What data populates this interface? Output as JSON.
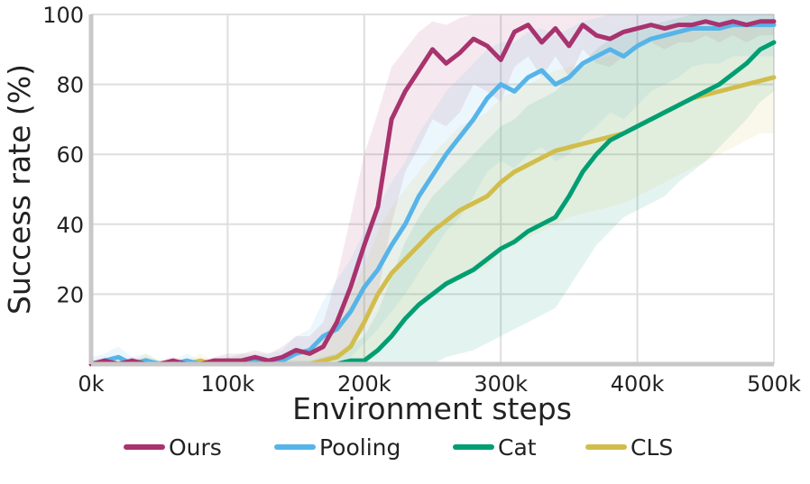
{
  "chart_data": {
    "type": "line",
    "title": "",
    "xlabel": "Environment steps",
    "ylabel": "Success rate (%)",
    "xlim": [
      0,
      500000
    ],
    "ylim": [
      0,
      100
    ],
    "x_ticks": [
      {
        "value": 0,
        "label": "0k"
      },
      {
        "value": 100000,
        "label": "100k"
      },
      {
        "value": 200000,
        "label": "200k"
      },
      {
        "value": 300000,
        "label": "300k"
      },
      {
        "value": 400000,
        "label": "400k"
      },
      {
        "value": 500000,
        "label": "500k"
      }
    ],
    "y_ticks": [
      {
        "value": 20,
        "label": "20"
      },
      {
        "value": 40,
        "label": "40"
      },
      {
        "value": 60,
        "label": "60"
      },
      {
        "value": 80,
        "label": "80"
      },
      {
        "value": 100,
        "label": "100"
      }
    ],
    "grid": true,
    "legend_position": "bottom",
    "x": [
      0,
      10000,
      20000,
      30000,
      40000,
      50000,
      60000,
      70000,
      80000,
      90000,
      100000,
      110000,
      120000,
      130000,
      140000,
      150000,
      160000,
      170000,
      180000,
      190000,
      200000,
      210000,
      220000,
      230000,
      240000,
      250000,
      260000,
      270000,
      280000,
      290000,
      300000,
      310000,
      320000,
      330000,
      340000,
      350000,
      360000,
      370000,
      380000,
      390000,
      400000,
      410000,
      420000,
      430000,
      440000,
      450000,
      460000,
      470000,
      480000,
      490000,
      500000
    ],
    "series": [
      {
        "name": "Ours",
        "color": "#a8336e",
        "values": [
          0,
          1,
          0,
          1,
          0,
          0,
          1,
          0,
          0,
          1,
          1,
          1,
          2,
          1,
          2,
          4,
          3,
          5,
          12,
          22,
          34,
          45,
          70,
          78,
          84,
          90,
          86,
          89,
          93,
          91,
          87,
          95,
          97,
          92,
          96,
          91,
          97,
          94,
          93,
          95,
          96,
          97,
          96,
          97,
          97,
          98,
          97,
          98,
          97,
          98,
          98
        ],
        "band": [
          [
            0,
            1
          ],
          [
            0,
            2
          ],
          [
            0,
            1
          ],
          [
            0,
            2
          ],
          [
            0,
            1
          ],
          [
            0,
            1
          ],
          [
            0,
            2
          ],
          [
            0,
            1
          ],
          [
            0,
            1
          ],
          [
            0,
            2
          ],
          [
            0,
            3
          ],
          [
            0,
            3
          ],
          [
            0,
            4
          ],
          [
            0,
            3
          ],
          [
            0,
            5
          ],
          [
            0,
            8
          ],
          [
            0,
            8
          ],
          [
            0,
            12
          ],
          [
            2,
            25
          ],
          [
            5,
            42
          ],
          [
            10,
            60
          ],
          [
            20,
            72
          ],
          [
            40,
            85
          ],
          [
            55,
            90
          ],
          [
            62,
            95
          ],
          [
            70,
            98
          ],
          [
            68,
            97
          ],
          [
            72,
            99
          ],
          [
            80,
            100
          ],
          [
            78,
            100
          ],
          [
            75,
            100
          ],
          [
            85,
            100
          ],
          [
            88,
            100
          ],
          [
            82,
            100
          ],
          [
            88,
            100
          ],
          [
            82,
            100
          ],
          [
            90,
            100
          ],
          [
            86,
            100
          ],
          [
            85,
            100
          ],
          [
            88,
            100
          ],
          [
            90,
            100
          ],
          [
            92,
            100
          ],
          [
            90,
            100
          ],
          [
            92,
            100
          ],
          [
            92,
            100
          ],
          [
            94,
            100
          ],
          [
            92,
            100
          ],
          [
            94,
            100
          ],
          [
            92,
            100
          ],
          [
            94,
            100
          ],
          [
            94,
            100
          ]
        ]
      },
      {
        "name": "Pooling",
        "color": "#56b4e9",
        "values": [
          0,
          1,
          2,
          0,
          1,
          0,
          0,
          1,
          0,
          0,
          0,
          1,
          1,
          1,
          1,
          3,
          4,
          8,
          10,
          15,
          22,
          27,
          34,
          40,
          48,
          54,
          60,
          65,
          70,
          76,
          80,
          78,
          82,
          84,
          80,
          82,
          86,
          88,
          90,
          88,
          91,
          93,
          94,
          95,
          96,
          96,
          96,
          97,
          97,
          97,
          97
        ],
        "band": [
          [
            0,
            2
          ],
          [
            0,
            3
          ],
          [
            0,
            5
          ],
          [
            0,
            2
          ],
          [
            0,
            3
          ],
          [
            0,
            1
          ],
          [
            0,
            1
          ],
          [
            0,
            3
          ],
          [
            0,
            1
          ],
          [
            0,
            1
          ],
          [
            0,
            2
          ],
          [
            0,
            3
          ],
          [
            0,
            3
          ],
          [
            0,
            3
          ],
          [
            0,
            4
          ],
          [
            0,
            8
          ],
          [
            0,
            10
          ],
          [
            0,
            18
          ],
          [
            0,
            24
          ],
          [
            2,
            30
          ],
          [
            6,
            38
          ],
          [
            10,
            45
          ],
          [
            15,
            52
          ],
          [
            20,
            58
          ],
          [
            26,
            66
          ],
          [
            32,
            72
          ],
          [
            38,
            78
          ],
          [
            42,
            82
          ],
          [
            48,
            86
          ],
          [
            55,
            90
          ],
          [
            58,
            92
          ],
          [
            56,
            92
          ],
          [
            60,
            95
          ],
          [
            62,
            96
          ],
          [
            58,
            94
          ],
          [
            60,
            96
          ],
          [
            65,
            98
          ],
          [
            68,
            99
          ],
          [
            72,
            100
          ],
          [
            70,
            100
          ],
          [
            74,
            100
          ],
          [
            78,
            100
          ],
          [
            80,
            100
          ],
          [
            82,
            100
          ],
          [
            85,
            100
          ],
          [
            86,
            100
          ],
          [
            86,
            100
          ],
          [
            88,
            100
          ],
          [
            88,
            100
          ],
          [
            88,
            100
          ],
          [
            88,
            100
          ]
        ]
      },
      {
        "name": "Cat",
        "color": "#009e73",
        "values": [
          0,
          0,
          0,
          0,
          1,
          0,
          0,
          0,
          0,
          0,
          0,
          0,
          0,
          0,
          0,
          0,
          0,
          0,
          0,
          1,
          1,
          4,
          8,
          13,
          17,
          20,
          23,
          25,
          27,
          30,
          33,
          35,
          38,
          40,
          42,
          48,
          55,
          60,
          64,
          66,
          68,
          70,
          72,
          74,
          76,
          78,
          80,
          83,
          86,
          90,
          92
        ],
        "band": [
          [
            0,
            1
          ],
          [
            0,
            1
          ],
          [
            0,
            1
          ],
          [
            0,
            1
          ],
          [
            0,
            2
          ],
          [
            0,
            1
          ],
          [
            0,
            1
          ],
          [
            0,
            1
          ],
          [
            0,
            1
          ],
          [
            0,
            1
          ],
          [
            0,
            1
          ],
          [
            0,
            1
          ],
          [
            0,
            1
          ],
          [
            0,
            1
          ],
          [
            0,
            1
          ],
          [
            0,
            1
          ],
          [
            0,
            1
          ],
          [
            0,
            2
          ],
          [
            0,
            3
          ],
          [
            0,
            5
          ],
          [
            0,
            8
          ],
          [
            0,
            15
          ],
          [
            0,
            25
          ],
          [
            0,
            35
          ],
          [
            0,
            42
          ],
          [
            0,
            48
          ],
          [
            2,
            52
          ],
          [
            3,
            56
          ],
          [
            4,
            60
          ],
          [
            6,
            64
          ],
          [
            8,
            68
          ],
          [
            10,
            70
          ],
          [
            12,
            74
          ],
          [
            14,
            76
          ],
          [
            16,
            78
          ],
          [
            22,
            82
          ],
          [
            28,
            86
          ],
          [
            34,
            90
          ],
          [
            38,
            93
          ],
          [
            42,
            94
          ],
          [
            44,
            96
          ],
          [
            46,
            97
          ],
          [
            48,
            98
          ],
          [
            52,
            99
          ],
          [
            55,
            100
          ],
          [
            58,
            100
          ],
          [
            62,
            100
          ],
          [
            66,
            100
          ],
          [
            70,
            100
          ],
          [
            75,
            100
          ],
          [
            78,
            100
          ]
        ]
      },
      {
        "name": "CLS",
        "color": "#d2bd4c",
        "values": [
          0,
          0,
          0,
          0,
          1,
          0,
          0,
          0,
          1,
          0,
          0,
          1,
          0,
          0,
          0,
          0,
          0,
          1,
          2,
          5,
          12,
          20,
          26,
          30,
          34,
          38,
          41,
          44,
          46,
          48,
          52,
          55,
          57,
          59,
          61,
          62,
          63,
          64,
          65,
          66,
          68,
          70,
          72,
          74,
          76,
          77,
          78,
          79,
          80,
          81,
          82
        ],
        "band": [
          [
            0,
            1
          ],
          [
            0,
            1
          ],
          [
            0,
            1
          ],
          [
            0,
            1
          ],
          [
            0,
            3
          ],
          [
            0,
            1
          ],
          [
            0,
            1
          ],
          [
            0,
            1
          ],
          [
            0,
            3
          ],
          [
            0,
            1
          ],
          [
            0,
            1
          ],
          [
            0,
            3
          ],
          [
            0,
            1
          ],
          [
            0,
            1
          ],
          [
            0,
            1
          ],
          [
            0,
            2
          ],
          [
            0,
            4
          ],
          [
            0,
            8
          ],
          [
            0,
            14
          ],
          [
            0,
            20
          ],
          [
            0,
            28
          ],
          [
            4,
            38
          ],
          [
            8,
            45
          ],
          [
            12,
            50
          ],
          [
            16,
            55
          ],
          [
            20,
            60
          ],
          [
            22,
            64
          ],
          [
            24,
            68
          ],
          [
            26,
            70
          ],
          [
            28,
            72
          ],
          [
            32,
            76
          ],
          [
            34,
            78
          ],
          [
            36,
            80
          ],
          [
            38,
            82
          ],
          [
            40,
            84
          ],
          [
            42,
            85
          ],
          [
            43,
            86
          ],
          [
            44,
            87
          ],
          [
            45,
            88
          ],
          [
            46,
            89
          ],
          [
            48,
            90
          ],
          [
            50,
            92
          ],
          [
            52,
            94
          ],
          [
            54,
            95
          ],
          [
            56,
            96
          ],
          [
            58,
            96
          ],
          [
            60,
            97
          ],
          [
            62,
            97
          ],
          [
            64,
            97
          ],
          [
            66,
            97
          ],
          [
            66,
            97
          ]
        ]
      }
    ]
  }
}
